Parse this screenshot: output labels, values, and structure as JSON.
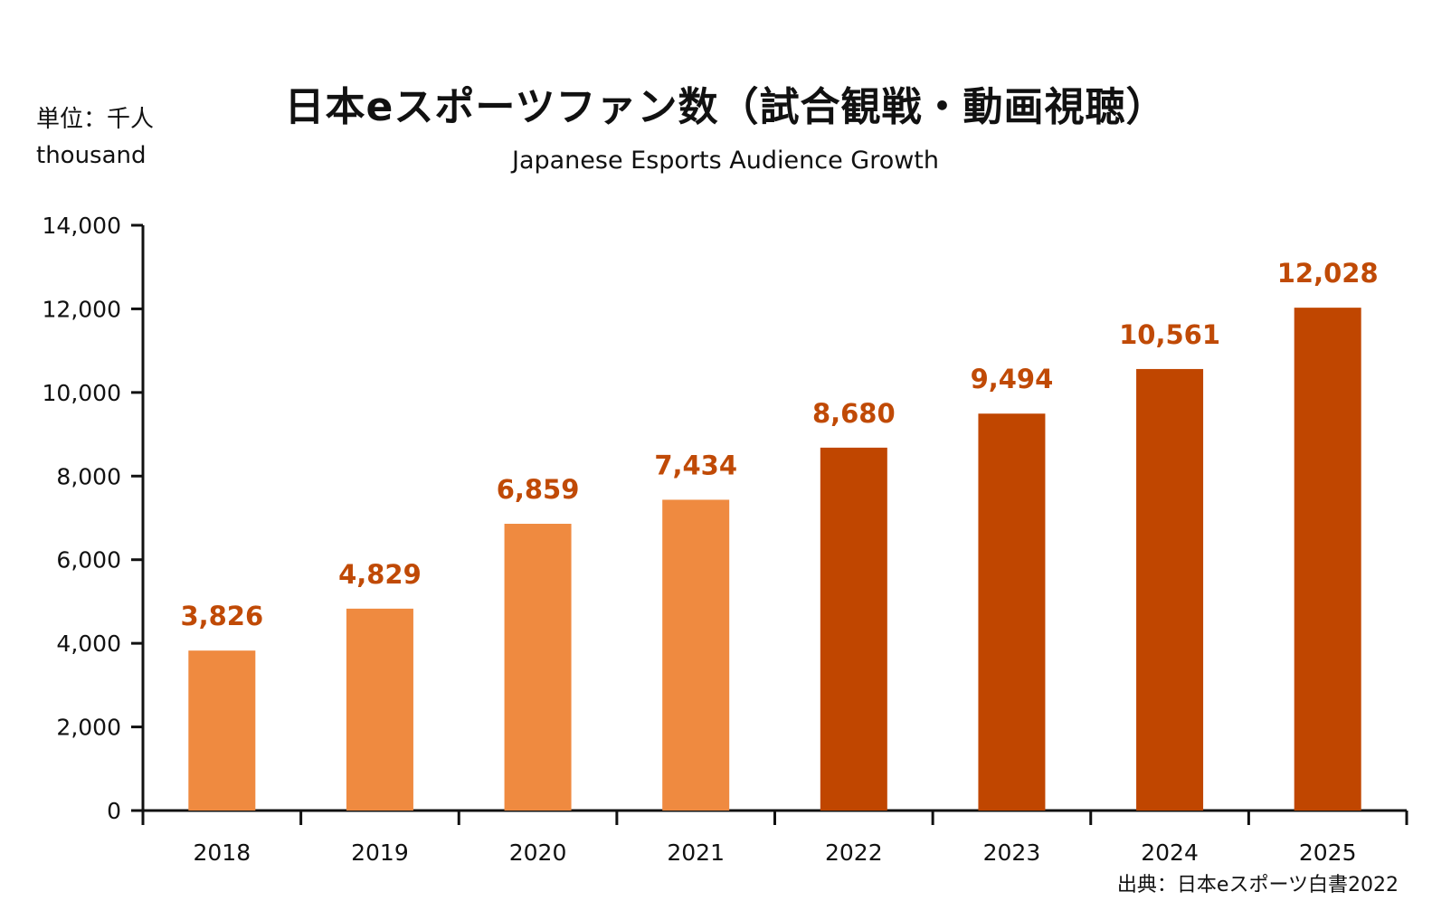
{
  "title": "日本eスポーツファン数（試合観戦・動画視聴）",
  "subtitle": "Japanese Esports Audience Growth",
  "unit_line1": "単位：千人",
  "unit_line2": "thousand",
  "source": "出典：日本eスポーツ白書2022",
  "colors": {
    "light_bar": "#EF8A40",
    "dark_bar": "#C04600",
    "label": "#C04A06",
    "axis": "#111111"
  },
  "chart_data": {
    "type": "bar",
    "categories": [
      "2018",
      "2019",
      "2020",
      "2021",
      "2022",
      "2023",
      "2024",
      "2025"
    ],
    "values": [
      3826,
      4829,
      6859,
      7434,
      8680,
      9494,
      10561,
      12028
    ],
    "value_labels": [
      "3,826",
      "4,829",
      "6,859",
      "7,434",
      "8,680",
      "9,494",
      "10,561",
      "12,028"
    ],
    "bar_shades": [
      "light",
      "light",
      "light",
      "light",
      "dark",
      "dark",
      "dark",
      "dark"
    ],
    "ylim": [
      0,
      14000
    ],
    "yticks": [
      0,
      2000,
      4000,
      6000,
      8000,
      10000,
      12000,
      14000
    ],
    "ytick_labels": [
      "0",
      "2,000",
      "4,000",
      "6,000",
      "8,000",
      "10,000",
      "12,000",
      "14,000"
    ],
    "grid": false,
    "legend": "none"
  }
}
